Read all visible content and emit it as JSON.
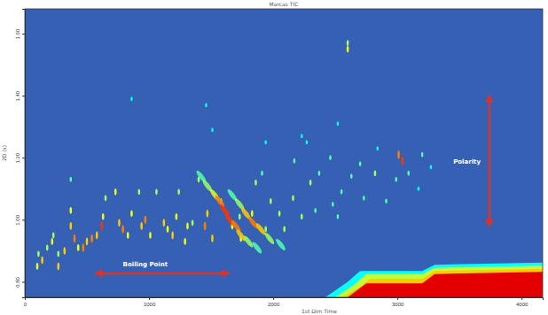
{
  "chart_data": {
    "type": "scatter",
    "title": "Marcas TIC",
    "x_label": "1st Dim Time",
    "y_label": "2D (s)",
    "xlim": [
      0,
      4170
    ],
    "ylim": [
      0.75,
      1.68
    ],
    "xticks": [
      0,
      1000,
      2000,
      3000,
      4000
    ],
    "yticks": [
      {
        "value": 0.8,
        "label": "0.80"
      },
      {
        "value": 1.0,
        "label": "1.00"
      },
      {
        "value": 1.2,
        "label": "1.20"
      },
      {
        "value": 1.4,
        "label": "1.40"
      },
      {
        "value": 1.6,
        "label": "1.60"
      }
    ],
    "grid": false,
    "series": [
      {
        "marker": "streak",
        "x": [
          270,
          270,
          370,
          370,
          370,
          470,
          500,
          540,
          580,
          620,
          630,
          650,
          730,
          760,
          790,
          830,
          860,
          920,
          940,
          970,
          1010,
          1060,
          1120,
          1150,
          1190,
          1220,
          1240,
          1290,
          1310,
          1350,
          1400,
          1450,
          1470,
          1510,
          1580,
          1670,
          1730,
          1740,
          1830,
          1860,
          1910,
          1940,
          1980,
          2050,
          2090,
          2160,
          2170,
          2230,
          2300,
          2340,
          2370,
          2460,
          2480,
          2520,
          2550,
          2630,
          2700,
          2730,
          2820,
          2840,
          2910,
          2990,
          3010,
          3040,
          3090,
          3170,
          3200,
          3270,
          2600,
          2600,
          860,
          1460,
          1510,
          1940,
          2230,
          2270,
          2520,
          100,
          110,
          140,
          180,
          220,
          230,
          320,
          400,
          430
        ],
        "values": [
          0.85,
          0.89,
          1.03,
          0.98,
          1.13,
          0.91,
          0.93,
          0.94,
          0.95,
          0.98,
          1.01,
          1.07,
          1.09,
          0.99,
          0.97,
          0.95,
          1.02,
          1.09,
          0.98,
          1.0,
          0.95,
          1.09,
          0.99,
          0.97,
          0.95,
          1.01,
          1.09,
          0.93,
          0.98,
          0.99,
          1.13,
          0.98,
          1.02,
          0.94,
          1.06,
          0.98,
          1.01,
          0.94,
          1.02,
          1.12,
          1.15,
          0.97,
          1.06,
          1.02,
          0.97,
          1.07,
          1.19,
          1.01,
          1.12,
          1.03,
          1.15,
          1.2,
          1.05,
          1.01,
          1.09,
          1.14,
          1.18,
          1.07,
          1.15,
          1.23,
          1.06,
          1.13,
          1.21,
          1.19,
          1.15,
          1.1,
          1.21,
          1.17,
          1.57,
          1.55,
          1.39,
          1.37,
          1.29,
          1.25,
          1.27,
          1.25,
          1.31,
          0.85,
          0.89,
          0.87,
          0.91,
          0.93,
          0.95,
          0.9,
          0.94,
          0.91
        ],
        "intensity": [
          0.7,
          0.5,
          0.6,
          0.7,
          0.4,
          0.8,
          0.7,
          0.8,
          0.7,
          0.9,
          0.6,
          0.5,
          0.6,
          0.7,
          0.8,
          0.6,
          0.6,
          0.5,
          0.7,
          0.8,
          0.6,
          0.5,
          0.7,
          0.6,
          0.7,
          0.6,
          0.5,
          0.6,
          0.6,
          0.5,
          0.5,
          0.8,
          0.7,
          0.7,
          0.5,
          0.6,
          0.5,
          0.6,
          0.6,
          0.5,
          0.4,
          0.5,
          0.5,
          0.5,
          0.5,
          0.5,
          0.4,
          0.5,
          0.5,
          0.4,
          0.4,
          0.4,
          0.4,
          0.4,
          0.4,
          0.4,
          0.4,
          0.4,
          0.5,
          0.3,
          0.4,
          0.4,
          0.8,
          0.9,
          0.4,
          0.3,
          0.4,
          0.3,
          0.5,
          0.6,
          0.3,
          0.3,
          0.3,
          0.3,
          0.3,
          0.3,
          0.3,
          0.6,
          0.5,
          0.7,
          0.5,
          0.6,
          0.5,
          0.7,
          0.8,
          0.6
        ]
      },
      {
        "marker": "band",
        "x": [
          1420,
          1470,
          1530,
          1570,
          1610,
          1650,
          1700,
          1740,
          1800,
          1870
        ],
        "values": [
          1.14,
          1.11,
          1.08,
          1.06,
          1.03,
          1.0,
          0.98,
          0.95,
          0.93,
          0.91
        ],
        "intensity": [
          0.4,
          0.5,
          0.6,
          0.8,
          0.9,
          0.9,
          0.8,
          0.7,
          0.5,
          0.4
        ]
      },
      {
        "marker": "band",
        "x": [
          1670,
          1730,
          1780,
          1840,
          1900,
          1970,
          2060
        ],
        "values": [
          1.08,
          1.05,
          1.02,
          0.99,
          0.97,
          0.94,
          0.92
        ],
        "intensity": [
          0.4,
          0.5,
          0.7,
          0.8,
          0.7,
          0.5,
          0.4
        ]
      }
    ],
    "contours": [
      {
        "level": 0.3,
        "x": [
          2420,
          2600,
          2700,
          3200,
          3300,
          4170
        ],
        "y": [
          0.75,
          0.8,
          0.835,
          0.835,
          0.855,
          0.862
        ]
      },
      {
        "level": 0.55,
        "x": [
          2500,
          2650,
          2750,
          3200,
          3300,
          4170
        ],
        "y": [
          0.75,
          0.79,
          0.825,
          0.825,
          0.845,
          0.852
        ]
      },
      {
        "level": 0.7,
        "x": [
          2560,
          2700,
          2780,
          3200,
          3300,
          4170
        ],
        "y": [
          0.75,
          0.785,
          0.81,
          0.81,
          0.835,
          0.842
        ]
      },
      {
        "level": 1.0,
        "x": [
          2600,
          2750,
          3200,
          3300,
          4170
        ],
        "y": [
          0.75,
          0.795,
          0.795,
          0.825,
          0.832
        ]
      }
    ],
    "annotations": [
      {
        "text": "Boiling Point",
        "x": 970,
        "y": 0.85,
        "arrow": {
          "x": [
            570,
            1640
          ],
          "y": [
            0.827,
            0.827
          ]
        }
      },
      {
        "text": "Polarity",
        "x": 3560,
        "y": 1.18,
        "arrow": {
          "x": [
            3740,
            3740
          ],
          "y": [
            0.98,
            1.4
          ]
        }
      }
    ]
  }
}
